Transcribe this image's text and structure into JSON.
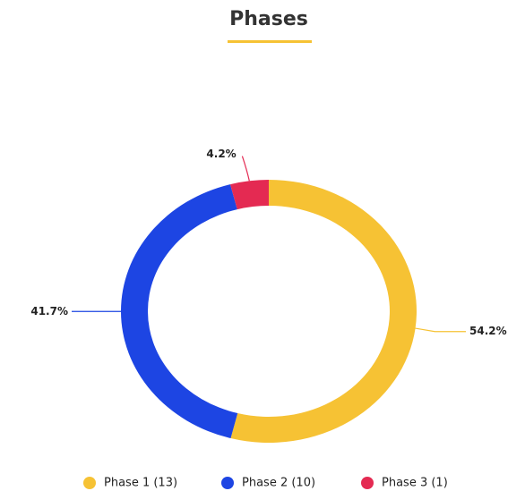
{
  "chart_data": {
    "type": "donut",
    "title": "Phases",
    "categories": [
      "Phase 1 (13)",
      "Phase 2 (10)",
      "Phase 3 (1)"
    ],
    "values": [
      54.2,
      41.7,
      4.2
    ],
    "value_labels": [
      "54.2%",
      "41.7%",
      "4.2%"
    ],
    "colors": [
      "#f6c234",
      "#1d45e3",
      "#e42a52"
    ]
  }
}
